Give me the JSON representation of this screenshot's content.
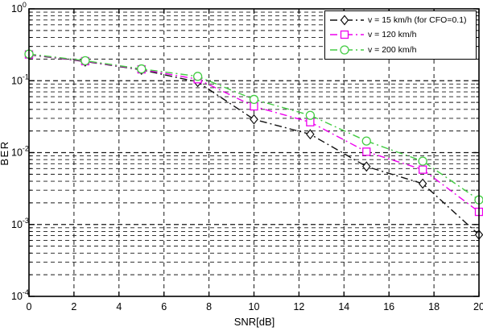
{
  "chart_data": {
    "type": "line",
    "title": "",
    "xlabel": "SNR[dB]",
    "ylabel": "BER",
    "x_scale": "linear",
    "y_scale": "log",
    "xlim": [
      0,
      20
    ],
    "ylim": [
      0.0001,
      1
    ],
    "x_ticks": [
      0,
      2,
      4,
      6,
      8,
      10,
      12,
      14,
      16,
      18,
      20
    ],
    "y_tick_exponents": [
      0,
      -1,
      -2,
      -3,
      -4
    ],
    "grid": "on",
    "legend_position": "top-right",
    "x": [
      0,
      2.5,
      5,
      7.5,
      10,
      12.5,
      15,
      17.5,
      20
    ],
    "series": [
      {
        "label": "v = 15 km/h  (for CFO=0.1)",
        "color": "#111111",
        "marker": "diamond",
        "line_style": "dash-dot",
        "values": [
          0.23,
          0.185,
          0.142,
          0.096,
          0.029,
          0.018,
          0.0064,
          0.0037,
          0.00072
        ]
      },
      {
        "label": "v = 120 km/h",
        "color": "#ee00ee",
        "marker": "square",
        "line_style": "dash-dot",
        "values": [
          0.232,
          0.187,
          0.144,
          0.105,
          0.044,
          0.0265,
          0.0103,
          0.0058,
          0.0015
        ]
      },
      {
        "label": "v = 200 km/h",
        "color": "#44cc44",
        "marker": "circle",
        "line_style": "dash-dot",
        "values": [
          0.235,
          0.19,
          0.146,
          0.115,
          0.055,
          0.033,
          0.0145,
          0.0076,
          0.0022
        ]
      }
    ]
  }
}
